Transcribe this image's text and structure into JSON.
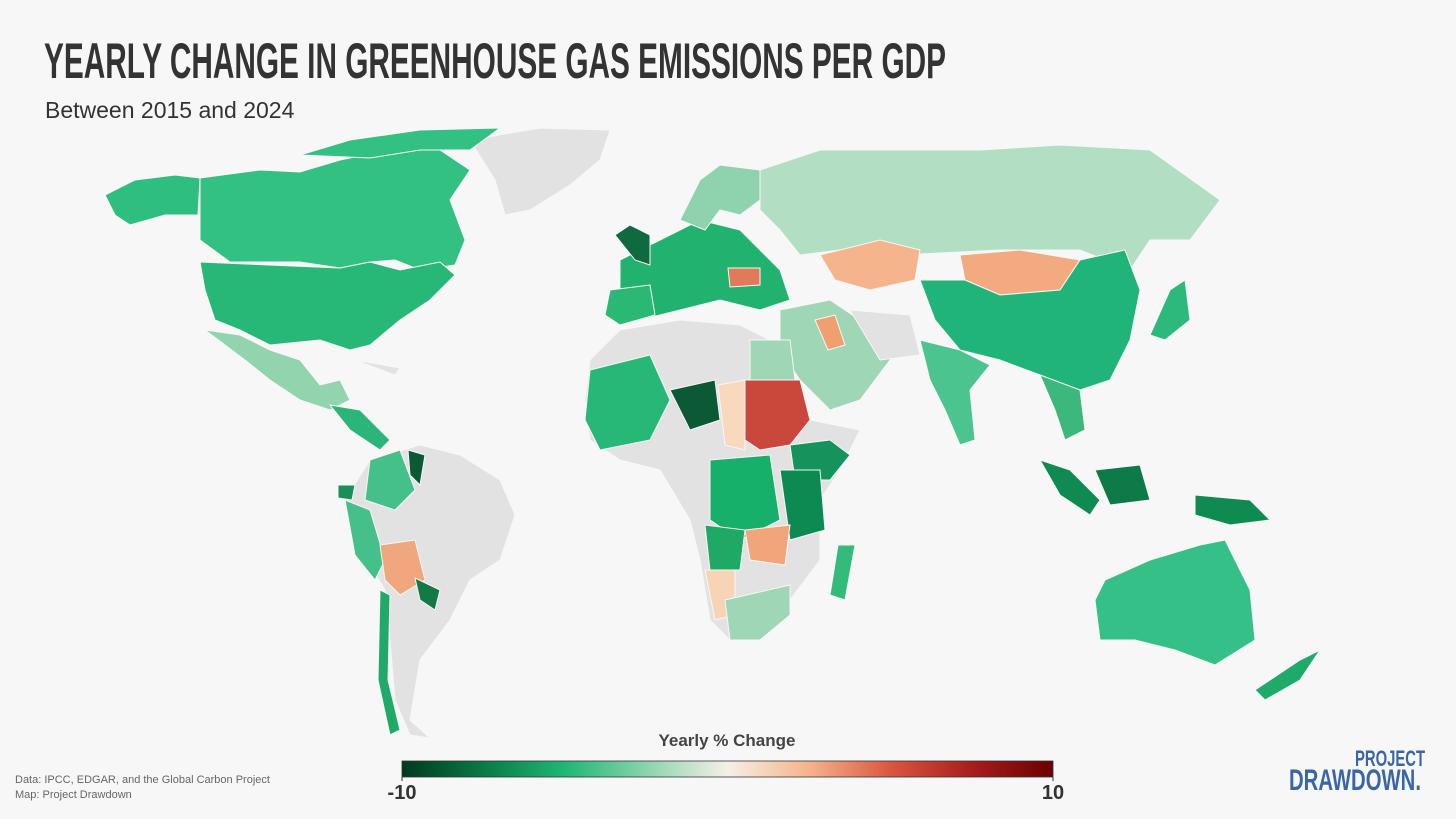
{
  "header": {
    "title": "YEARLY CHANGE IN GREENHOUSE GAS EMISSIONS PER GDP",
    "subtitle": "Between 2015 and 2024"
  },
  "legend": {
    "title": "Yearly % Change",
    "min": -10,
    "max": 10,
    "colors": [
      "#00391f",
      "#0a7a45",
      "#1fb774",
      "#8ad4ab",
      "#f5f0e6",
      "#f4b48c",
      "#d9573f",
      "#a81d1d",
      "#6b0000"
    ]
  },
  "footer": {
    "sources": [
      "Data: IPCC, EDGAR, and the Global Carbon Project",
      "Map: Project Drawdown"
    ],
    "logo": [
      "PROJECT",
      "DRAWDOWN."
    ]
  }
}
